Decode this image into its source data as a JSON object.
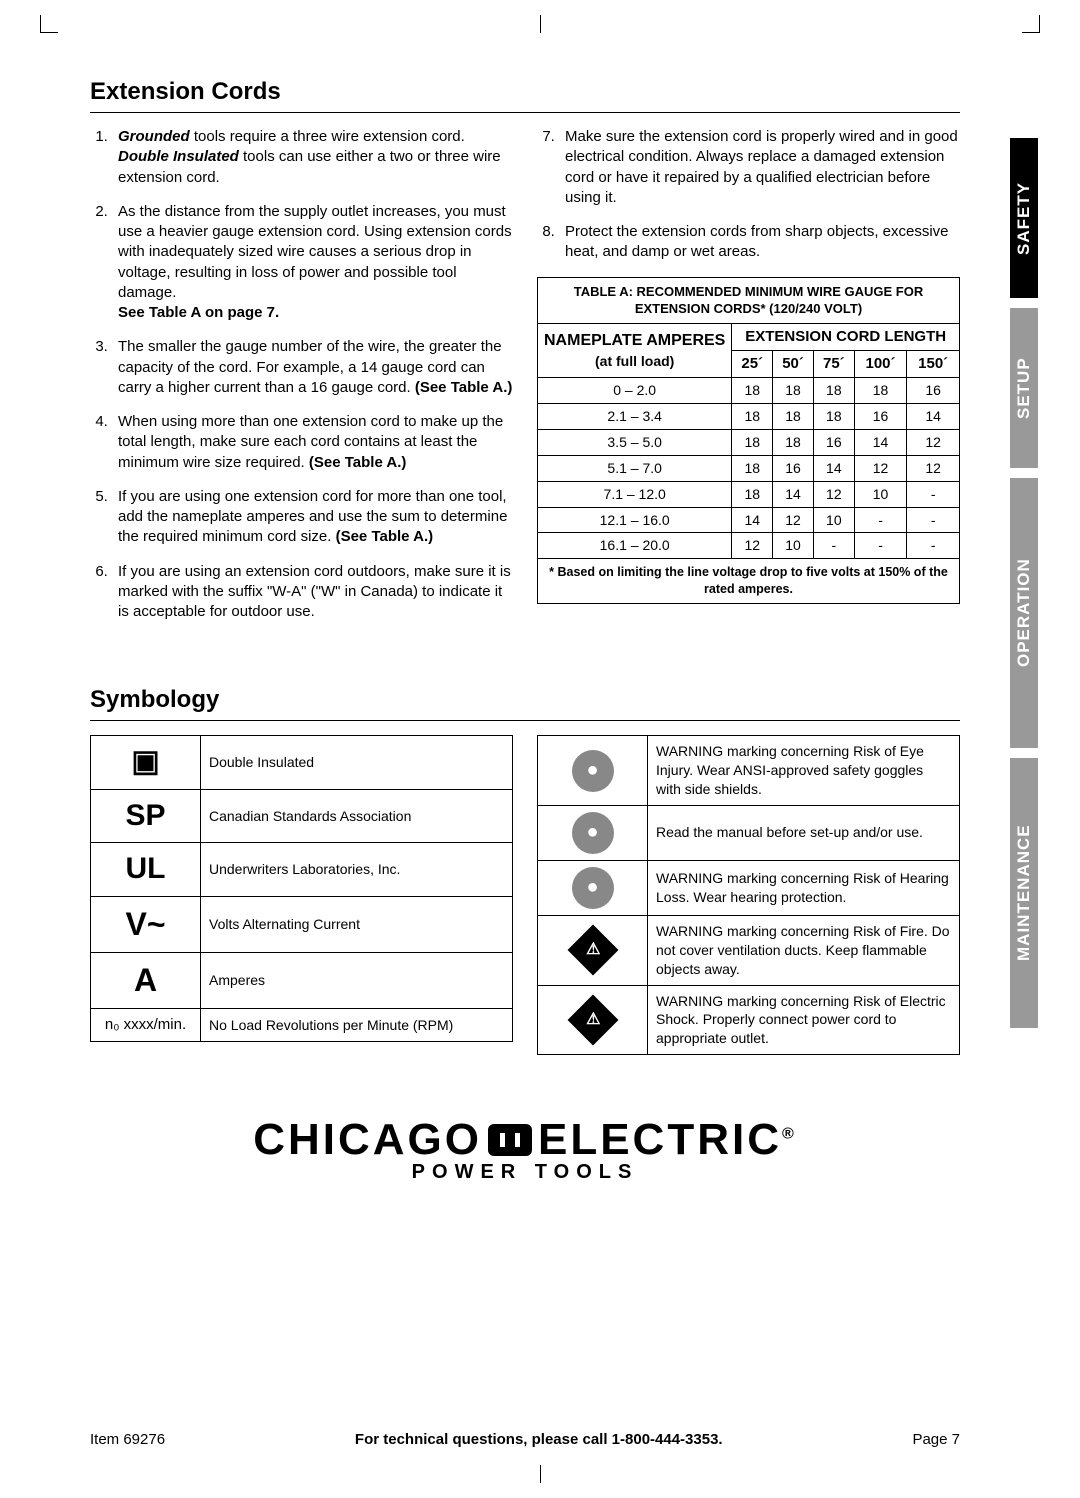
{
  "page": {
    "item": "Item 69276",
    "footer_mid": "For technical questions, please call 1-800-444-3353.",
    "page_num": "Page 7"
  },
  "tabs": {
    "safety": "SAFETY",
    "setup": "SETUP",
    "operation": "OPERATION",
    "maintenance": "MAINTENANCE"
  },
  "section1": {
    "title": "Extension Cords",
    "left": [
      {
        "pre": "",
        "b": "Grounded",
        "mid": " tools require a three wire extension cord.  ",
        "b2": "Double Insulated",
        "post": " tools can use either a two or three wire extension cord."
      },
      {
        "text": "As the distance from the supply outlet increases, you must use a heavier gauge extension cord.  Using extension cords with inadequately sized wire causes a serious drop in voltage, resulting in loss of power and possible tool damage.  ",
        "b": "See Table A on page 7."
      },
      {
        "text": "The smaller the gauge number of the wire, the greater the capacity of the cord.  For example, a 14 gauge cord can carry a higher current than a 16 gauge cord.  ",
        "b": "(See Table A.)"
      },
      {
        "text": "When using more than one extension cord to make up the total length, make sure each cord contains at least the minimum wire size required.  ",
        "b": "(See Table A.)"
      },
      {
        "text": "If you are using one extension cord for more than one tool, add the nameplate amperes and use the sum to determine the required minimum cord size.  ",
        "b": "(See Table A.)"
      },
      {
        "text": "If you are using an extension cord outdoors, make sure it is marked with the suffix \"W-A\" (\"W\" in Canada) to indicate it is acceptable for outdoor use."
      }
    ],
    "right": [
      {
        "text": "Make sure the extension cord is properly wired and in good electrical condition.  Always replace a damaged extension cord or have it repaired by a qualified electrician before using it."
      },
      {
        "text": "Protect the extension cords from sharp objects, excessive heat, and damp or wet areas."
      }
    ]
  },
  "tableA": {
    "title": "TABLE A:  RECOMMENDED MINIMUM WIRE GAUGE FOR EXTENSION CORDS* (120/240 VOLT)",
    "rowhdr_top": "NAMEPLATE AMPERES",
    "rowhdr_bot": "(at full load)",
    "colhdr": "EXTENSION CORD LENGTH",
    "lengths": [
      "25´",
      "50´",
      "75´",
      "100´",
      "150´"
    ],
    "rows": [
      {
        "amp": "0 – 2.0",
        "v": [
          "18",
          "18",
          "18",
          "18",
          "16"
        ]
      },
      {
        "amp": "2.1 – 3.4",
        "v": [
          "18",
          "18",
          "18",
          "16",
          "14"
        ]
      },
      {
        "amp": "3.5 – 5.0",
        "v": [
          "18",
          "18",
          "16",
          "14",
          "12"
        ]
      },
      {
        "amp": "5.1 – 7.0",
        "v": [
          "18",
          "16",
          "14",
          "12",
          "12"
        ]
      },
      {
        "amp": "7.1 – 12.0",
        "v": [
          "18",
          "14",
          "12",
          "10",
          "-"
        ]
      },
      {
        "amp": "12.1 – 16.0",
        "v": [
          "14",
          "12",
          "10",
          "-",
          "-"
        ]
      },
      {
        "amp": "16.1 – 20.0",
        "v": [
          "12",
          "10",
          "-",
          "-",
          "-"
        ]
      }
    ],
    "note": "* Based on limiting the line voltage drop to five volts at 150% of the rated amperes."
  },
  "section2": {
    "title": "Symbology",
    "left": [
      {
        "sym": "▣",
        "desc": "Double Insulated"
      },
      {
        "sym": "SP",
        "desc": "Canadian Standards Association"
      },
      {
        "sym": "UL",
        "desc": "Underwriters Laboratories, Inc."
      },
      {
        "sym": "V~",
        "desc": "Volts Alternating Current"
      },
      {
        "sym": "A",
        "desc": "Amperes"
      },
      {
        "sym": "n₀ xxxx/min.",
        "desc": "No Load Revolutions per Minute (RPM)"
      }
    ],
    "right": [
      {
        "type": "circ",
        "desc": "WARNING marking concerning Risk of Eye Injury.  Wear ANSI-approved safety goggles with side shields."
      },
      {
        "type": "circ",
        "desc": "Read the manual before set-up and/or use."
      },
      {
        "type": "circ",
        "desc": "WARNING marking concerning Risk of Hearing Loss. Wear hearing protection."
      },
      {
        "type": "diamond",
        "desc": "WARNING marking concerning Risk of Fire. Do not cover ventilation ducts. Keep flammable objects away."
      },
      {
        "type": "diamond",
        "desc": "WARNING marking concerning Risk of Electric Shock. Properly connect power cord to appropriate outlet."
      }
    ]
  },
  "brand": {
    "main1": "CHICAGO",
    "main2": "ELECTRIC",
    "reg": "®",
    "sub": "POWER TOOLS"
  },
  "colors": {
    "tab_active": "#000000",
    "tab_inactive": "#999999",
    "icon_gray": "#888888"
  }
}
